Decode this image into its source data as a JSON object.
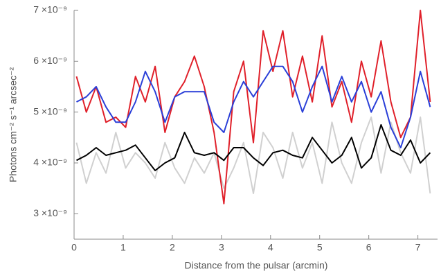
{
  "chart_data": {
    "type": "line",
    "x_label": "Distance from the pulsar (arcmin)",
    "y_label": "Photons cm⁻² s⁻¹ arcsec⁻²",
    "x": [
      0.05,
      0.25,
      0.45,
      0.65,
      0.85,
      1.05,
      1.25,
      1.45,
      1.65,
      1.85,
      2.05,
      2.25,
      2.45,
      2.65,
      2.85,
      3.05,
      3.25,
      3.45,
      3.65,
      3.85,
      4.05,
      4.25,
      4.45,
      4.65,
      4.85,
      5.05,
      5.25,
      5.45,
      5.65,
      5.85,
      6.05,
      6.25,
      6.45,
      6.65,
      6.85,
      7.05,
      7.25
    ],
    "series": [
      {
        "color": "#d0d0d0",
        "values": [
          4.4e-09,
          3.6e-09,
          4.2e-09,
          3.8e-09,
          4.6e-09,
          3.9e-09,
          4.2e-09,
          4e-09,
          3.7e-09,
          4.4e-09,
          3.9e-09,
          3.6e-09,
          4.1e-09,
          3.8e-09,
          4.2e-09,
          3.5e-09,
          3.9e-09,
          4.4e-09,
          3.4e-09,
          4.6e-09,
          4.3e-09,
          3.7e-09,
          4.6e-09,
          3.9e-09,
          4.4e-09,
          3.6e-09,
          4.8e-09,
          4e-09,
          3.6e-09,
          4.4e-09,
          4.9e-09,
          3.8e-09,
          4.8e-09,
          4.2e-09,
          3.8e-09,
          4.9e-09,
          3.4e-09
        ]
      },
      {
        "color": "#e0202a",
        "values": [
          5.7e-09,
          5e-09,
          5.5e-09,
          4.8e-09,
          4.9e-09,
          4.7e-09,
          5.7e-09,
          5.2e-09,
          5.9e-09,
          4.6e-09,
          5.3e-09,
          5.6e-09,
          6.1e-09,
          5.5e-09,
          4.6e-09,
          3.2e-09,
          5.4e-09,
          6e-09,
          4.4e-09,
          6.6e-09,
          5.8e-09,
          6.6e-09,
          5.3e-09,
          6.1e-09,
          5.2e-09,
          6.5e-09,
          5.1e-09,
          5.6e-09,
          4.8e-09,
          6e-09,
          5.3e-09,
          6.4e-09,
          5.2e-09,
          4.5e-09,
          4.9e-09,
          7e-09,
          5.2e-09
        ]
      },
      {
        "color": "#000000",
        "values": [
          4.05e-09,
          4.15e-09,
          4.3e-09,
          4.15e-09,
          4.2e-09,
          4.25e-09,
          4.35e-09,
          4.1e-09,
          3.85e-09,
          4e-09,
          4.1e-09,
          4.6e-09,
          4.2e-09,
          4.15e-09,
          4.2e-09,
          4.05e-09,
          4.3e-09,
          4.3e-09,
          4.1e-09,
          3.95e-09,
          4.2e-09,
          4.25e-09,
          4.15e-09,
          4.1e-09,
          4.5e-09,
          4.25e-09,
          4e-09,
          4.15e-09,
          4.5e-09,
          3.9e-09,
          4.1e-09,
          4.75e-09,
          4.25e-09,
          4.15e-09,
          4.45e-09,
          4e-09,
          4.2e-09
        ]
      },
      {
        "color": "#2a3fd8",
        "values": [
          5.2e-09,
          5.3e-09,
          5.5e-09,
          5.1e-09,
          4.8e-09,
          4.8e-09,
          5.2e-09,
          5.8e-09,
          5.4e-09,
          4.8e-09,
          5.3e-09,
          5.4e-09,
          5.4e-09,
          5.4e-09,
          4.8e-09,
          4.6e-09,
          5.2e-09,
          5.6e-09,
          5.3e-09,
          5.6e-09,
          5.9e-09,
          5.9e-09,
          5.6e-09,
          5e-09,
          5.5e-09,
          5.9e-09,
          5.2e-09,
          5.7e-09,
          5.2e-09,
          5.6e-09,
          5e-09,
          5.4e-09,
          4.7e-09,
          4.3e-09,
          4.9e-09,
          5.8e-09,
          5.1e-09
        ]
      }
    ],
    "xlim": [
      0,
      7.4
    ],
    "ylim": [
      2.5e-09,
      7e-09
    ],
    "xticks": [
      0,
      1,
      2,
      3,
      4,
      5,
      6,
      7
    ],
    "yticks": [
      {
        "value": 3e-09,
        "label": "3 ×10⁻⁹"
      },
      {
        "value": 4e-09,
        "label": "4 ×10⁻⁹"
      },
      {
        "value": 5e-09,
        "label": "5 ×10⁻⁹"
      },
      {
        "value": 6e-09,
        "label": "6 ×10⁻⁹"
      },
      {
        "value": 7e-09,
        "label": "7 ×10⁻⁹"
      }
    ]
  }
}
